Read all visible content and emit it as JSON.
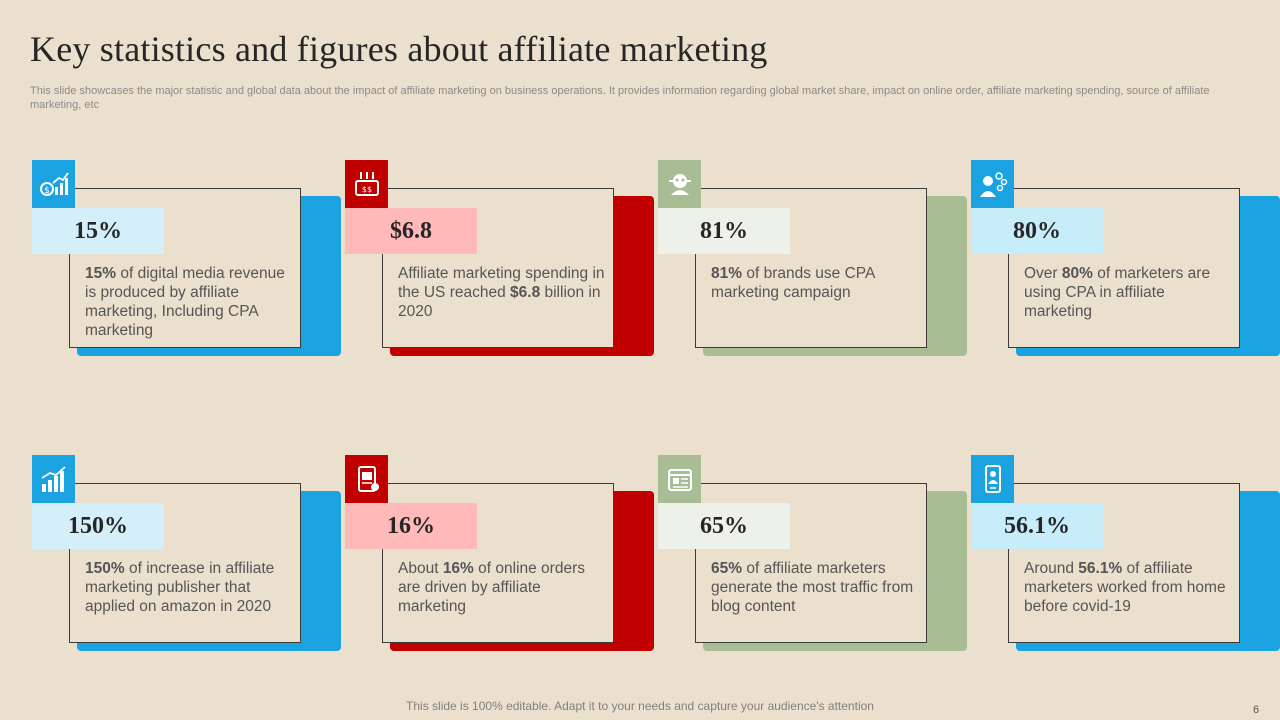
{
  "title": "Key statistics and figures about affiliate marketing",
  "subtitle": "This slide showcases the major statistic and global data about the impact of affiliate marketing on business operations. It provides information regarding global market share, impact on online order, affiliate marketing spending, source of affiliate marketing, etc",
  "footer": "This slide is 100% editable. Adapt it to your needs and capture your audience's attention",
  "page_number": "6",
  "colors": {
    "blue": "#1aa3e0",
    "red": "#c00000",
    "green": "#a9bd95",
    "stat_blue": "#d5effa",
    "stat_red": "#ffb9b9",
    "stat_green": "#eef0ea",
    "stat_lightblue": "#c8edfa"
  },
  "cards": [
    {
      "theme": "blue",
      "icon": "revenue-chart-icon",
      "stat": "15%",
      "desc": [
        {
          "b": "15%"
        },
        {
          "t": " of digital media revenue  is produced by affiliate marketing, Including CPA marketing"
        }
      ]
    },
    {
      "theme": "red",
      "icon": "spending-icon",
      "stat": "$6.8",
      "desc": [
        {
          "t": "Affiliate marketing spending in the US reached "
        },
        {
          "b": "$6.8"
        },
        {
          "t": " billion in 2020"
        }
      ]
    },
    {
      "theme": "green",
      "icon": "brand-icon",
      "stat": "81%",
      "desc": [
        {
          "b": "81%"
        },
        {
          "t": " of brands use CPA marketing campaign"
        }
      ]
    },
    {
      "theme": "lightblue",
      "icon": "marketer-icon",
      "stat": "80%",
      "desc": [
        {
          "t": "Over "
        },
        {
          "b": "80%"
        },
        {
          "t": " of marketers are using CPA in affiliate marketing"
        }
      ]
    },
    {
      "theme": "blue",
      "icon": "growth-bar-icon",
      "stat": "150%",
      "desc": [
        {
          "b": "150%"
        },
        {
          "t": " of increase in affiliate marketing publisher that applied on amazon in 2020"
        }
      ]
    },
    {
      "theme": "red",
      "icon": "online-order-icon",
      "stat": "16%",
      "desc": [
        {
          "t": "About "
        },
        {
          "b": "16%"
        },
        {
          "t": " of online orders are driven by affiliate marketing"
        }
      ]
    },
    {
      "theme": "green",
      "icon": "blog-icon",
      "stat": "65%",
      "desc": [
        {
          "b": "65%"
        },
        {
          "t": " of affiliate marketers generate the most traffic from blog content"
        }
      ]
    },
    {
      "theme": "lightblue",
      "icon": "remote-work-icon",
      "stat": "56.1%",
      "desc": [
        {
          "t": "Around "
        },
        {
          "b": "56.1%"
        },
        {
          "t": " of affiliate marketers worked from home before covid-19"
        }
      ]
    }
  ]
}
